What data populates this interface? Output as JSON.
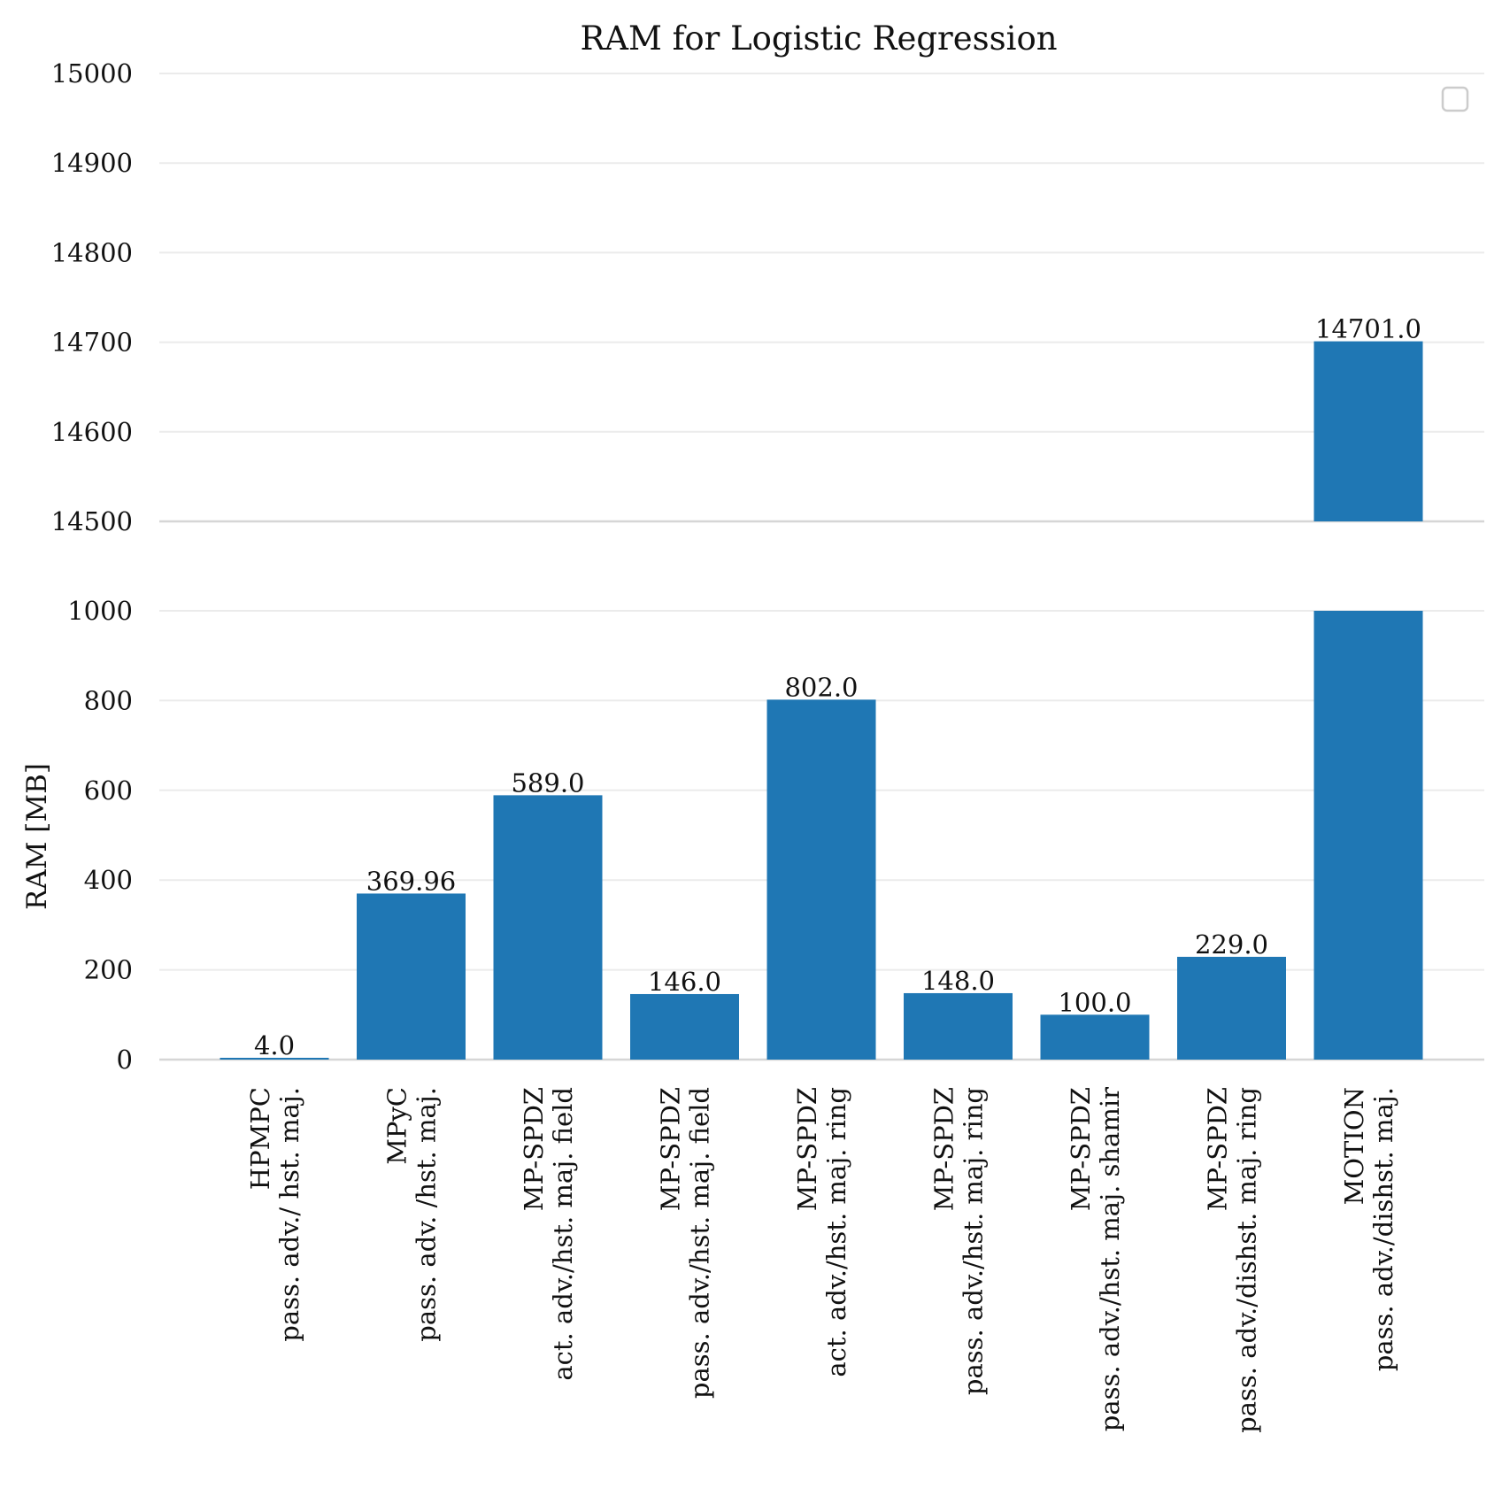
{
  "chart_data": {
    "type": "bar",
    "title": "RAM for Logistic Regression",
    "xlabel": "",
    "ylabel": "RAM [MB]",
    "broken_axis": true,
    "lower_ylim": [
      0,
      1000
    ],
    "upper_ylim": [
      14500,
      15000
    ],
    "lower_ticks": [
      0,
      200,
      400,
      600,
      800,
      1000
    ],
    "upper_ticks": [
      14500,
      14600,
      14700,
      14800,
      14900,
      15000
    ],
    "grid": true,
    "legend": "top-right (empty)",
    "bar_color": "#1f77b4",
    "categories": [
      {
        "name": "HPMPC",
        "sub": "pass. adv./ hst. maj."
      },
      {
        "name": "MPyC",
        "sub": "pass. adv. /hst. maj."
      },
      {
        "name": "MP-SPDZ",
        "sub": "act. adv./hst. maj. field"
      },
      {
        "name": "MP-SPDZ",
        "sub": "pass. adv./hst. maj. field"
      },
      {
        "name": "MP-SPDZ",
        "sub": "act. adv./hst. maj. ring"
      },
      {
        "name": "MP-SPDZ",
        "sub": "pass. adv./hst. maj. ring"
      },
      {
        "name": "MP-SPDZ",
        "sub": "pass. adv./hst. maj. shamir"
      },
      {
        "name": "MP-SPDZ",
        "sub": "pass. adv./dishst. maj. ring"
      },
      {
        "name": "MOTION",
        "sub": "pass. adv./dishst. maj."
      }
    ],
    "values": [
      4.0,
      369.96,
      589.0,
      146.0,
      802.0,
      148.0,
      100.0,
      229.0,
      14701.0
    ],
    "value_labels": [
      "4.0",
      "369.96",
      "589.0",
      "146.0",
      "802.0",
      "148.0",
      "100.0",
      "229.0",
      "14701.0"
    ]
  }
}
